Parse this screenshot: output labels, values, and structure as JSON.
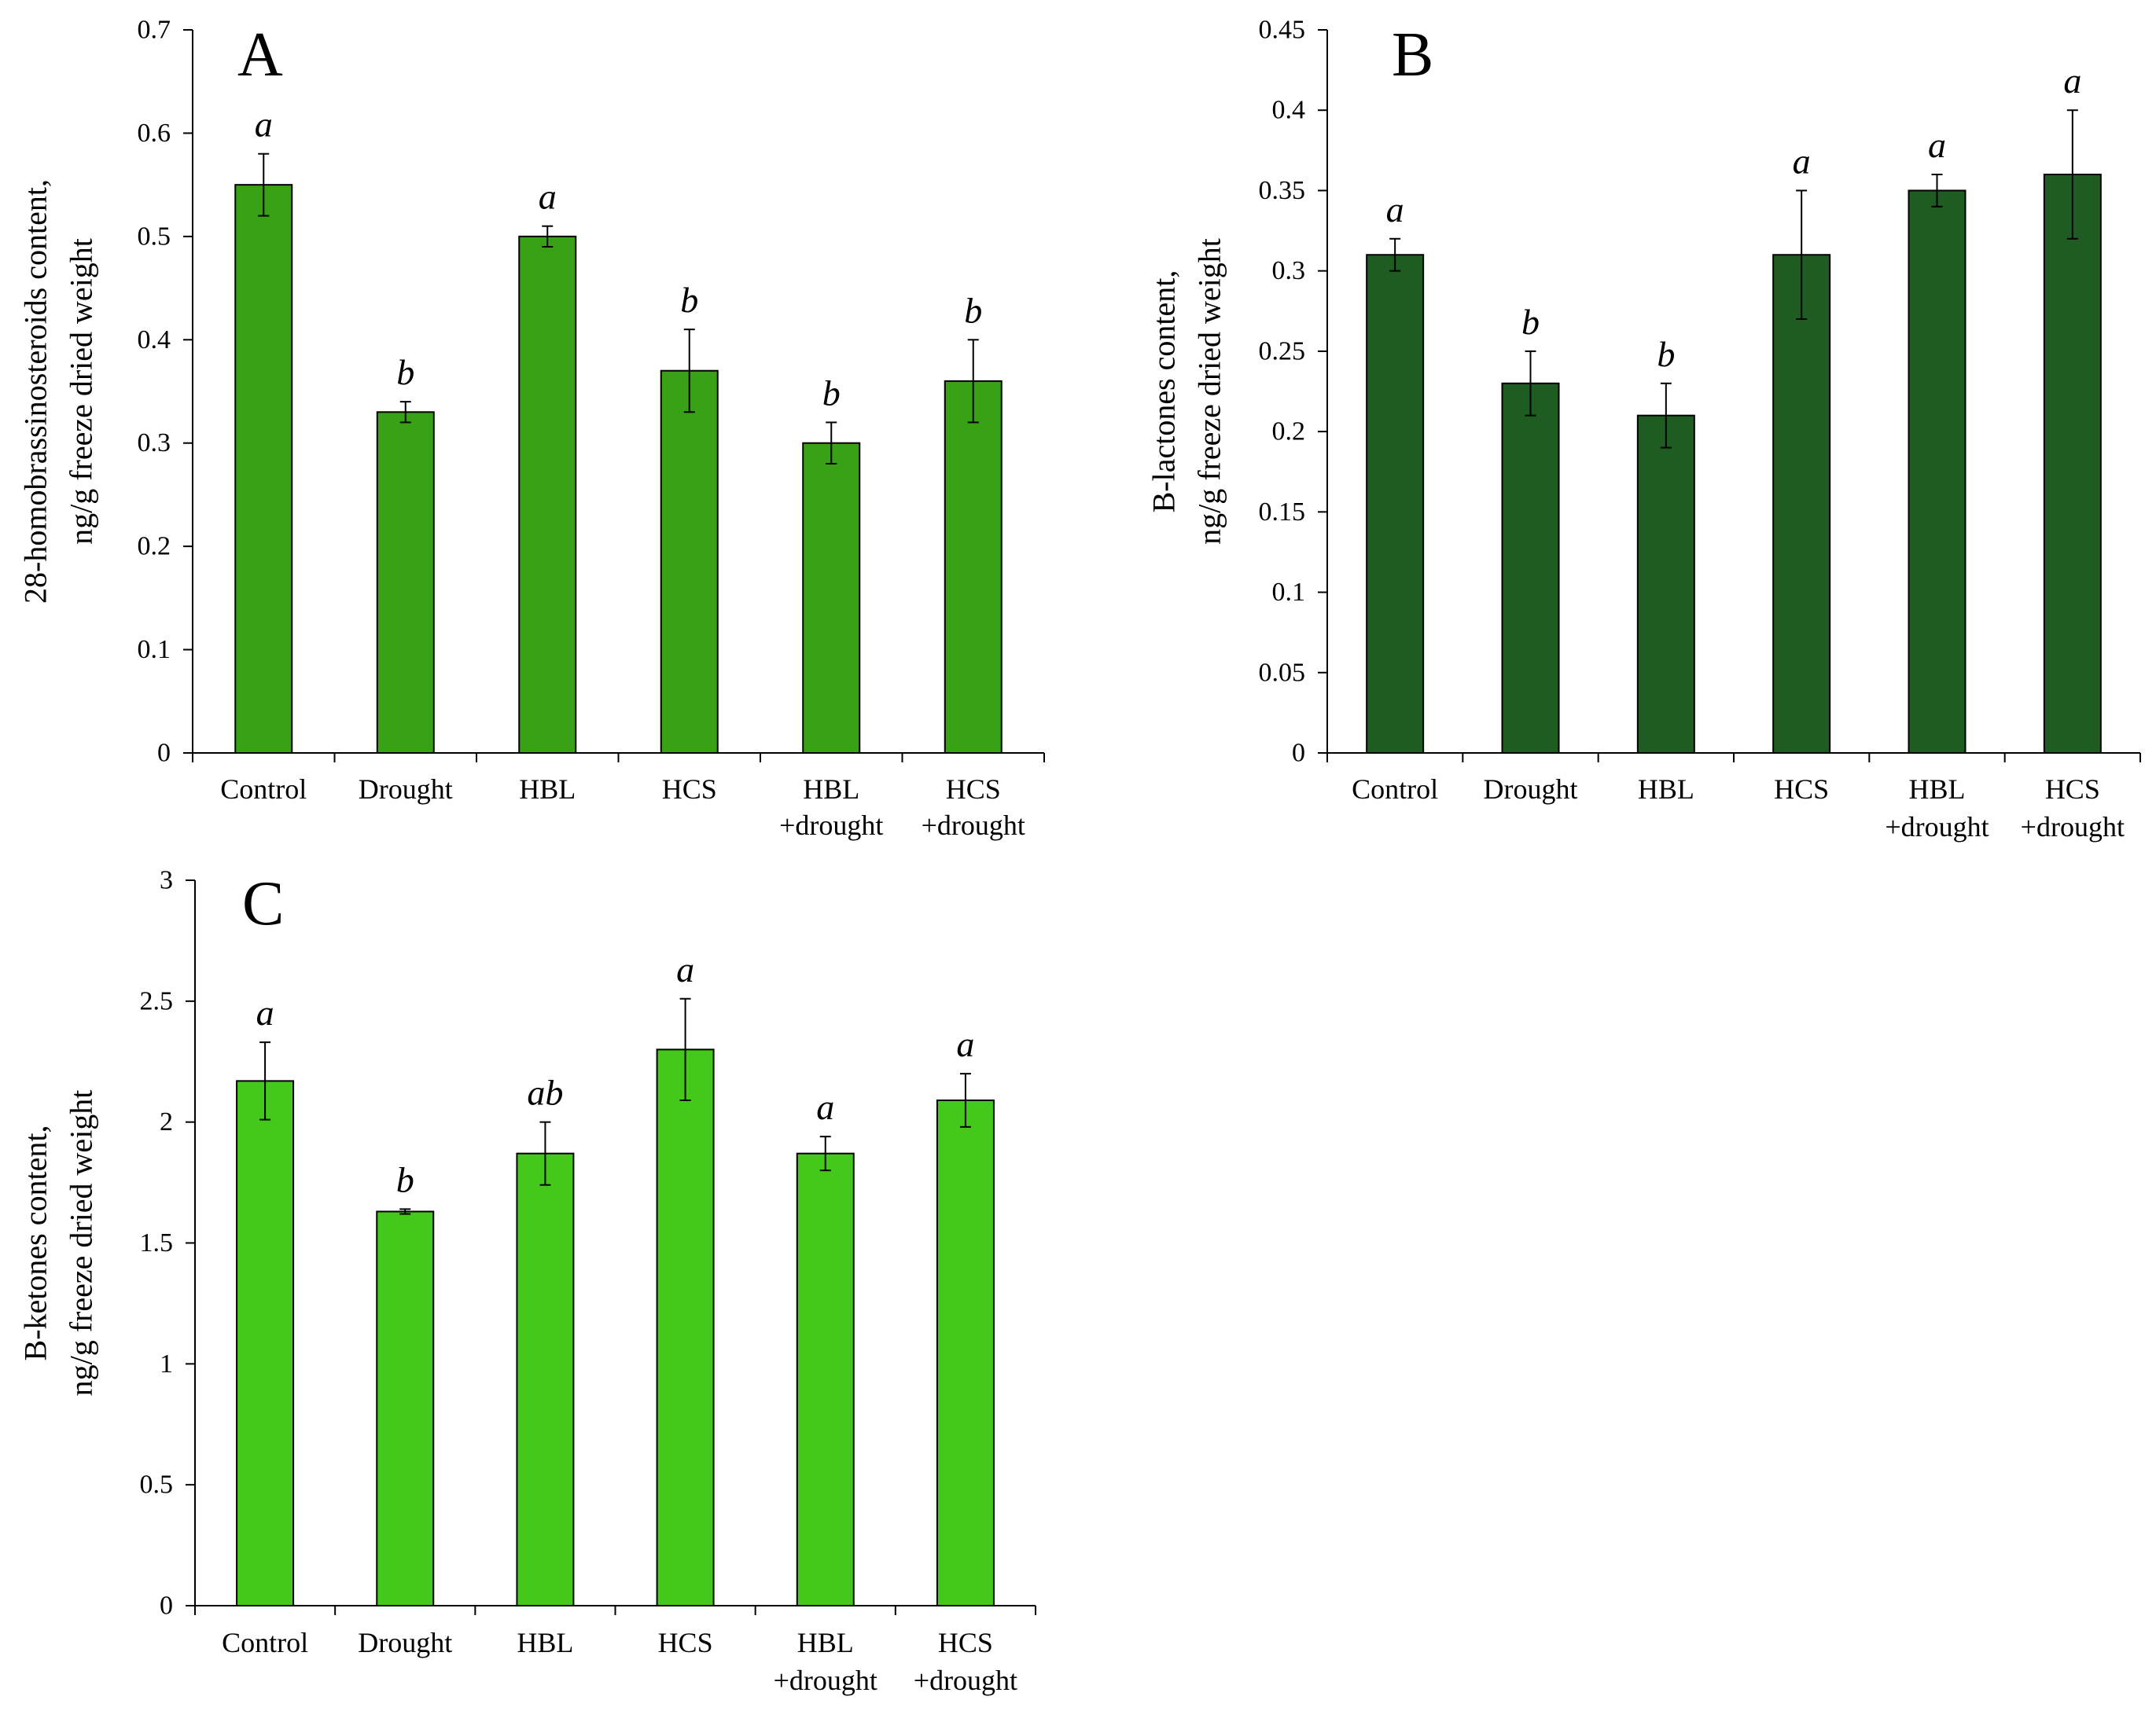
{
  "figure": {
    "panels": [
      "A",
      "B",
      "C"
    ]
  },
  "chart_data": [
    {
      "panel": "A",
      "type": "bar",
      "title": "",
      "ylabel_lines": [
        "28-homobrassinosteroids content,",
        "ng/g freeze dried weight"
      ],
      "xlabel": "",
      "categories": [
        [
          "Control"
        ],
        [
          "Drought"
        ],
        [
          "HBL"
        ],
        [
          "HCS"
        ],
        [
          "HBL",
          "+drought"
        ],
        [
          "HCS",
          "+drought"
        ]
      ],
      "values": [
        0.55,
        0.33,
        0.5,
        0.37,
        0.3,
        0.36
      ],
      "errors": [
        0.03,
        0.01,
        0.01,
        0.04,
        0.02,
        0.04
      ],
      "significance": [
        "a",
        "b",
        "a",
        "b",
        "b",
        "b"
      ],
      "ylim": [
        0,
        0.7
      ],
      "yticks": [
        0,
        0.1,
        0.2,
        0.3,
        0.4,
        0.5,
        0.6,
        0.7
      ],
      "ytick_labels": [
        "0",
        "0.1",
        "0.2",
        "0.3",
        "0.4",
        "0.5",
        "0.6",
        "0.7"
      ],
      "bar_color": "#38a116",
      "grid": false
    },
    {
      "panel": "B",
      "type": "bar",
      "title": "",
      "ylabel_lines": [
        "B-lactones content,",
        "ng/g freeze dried weight"
      ],
      "xlabel": "",
      "categories": [
        [
          "Control"
        ],
        [
          "Drought"
        ],
        [
          "HBL"
        ],
        [
          "HCS"
        ],
        [
          "HBL",
          "+drought"
        ],
        [
          "HCS",
          "+drought"
        ]
      ],
      "values": [
        0.31,
        0.23,
        0.21,
        0.31,
        0.35,
        0.36
      ],
      "errors": [
        0.01,
        0.02,
        0.02,
        0.04,
        0.01,
        0.04
      ],
      "significance": [
        "a",
        "b",
        "b",
        "a",
        "a",
        "a"
      ],
      "ylim": [
        0,
        0.45
      ],
      "yticks": [
        0,
        0.05,
        0.1,
        0.15,
        0.2,
        0.25,
        0.3,
        0.35,
        0.4,
        0.45
      ],
      "ytick_labels": [
        "0",
        "0.05",
        "0.1",
        "0.15",
        "0.2",
        "0.25",
        "0.3",
        "0.35",
        "0.4",
        "0.45"
      ],
      "bar_color": "#1f5c21",
      "grid": false
    },
    {
      "panel": "C",
      "type": "bar",
      "title": "",
      "ylabel_lines": [
        "B-ketones content,",
        "ng/g freeze dried weight"
      ],
      "xlabel": "",
      "categories": [
        [
          "Control"
        ],
        [
          "Drought"
        ],
        [
          "HBL"
        ],
        [
          "HCS"
        ],
        [
          "HBL",
          "+drought"
        ],
        [
          "HCS",
          "+drought"
        ]
      ],
      "values": [
        2.17,
        1.63,
        1.87,
        2.3,
        1.87,
        2.09
      ],
      "errors": [
        0.16,
        0.01,
        0.13,
        0.21,
        0.07,
        0.11
      ],
      "significance": [
        "a",
        "b",
        "ab",
        "a",
        "a",
        "a"
      ],
      "ylim": [
        0,
        3
      ],
      "yticks": [
        0,
        0.5,
        1,
        1.5,
        2,
        2.5,
        3
      ],
      "ytick_labels": [
        "0",
        "0.5",
        "1",
        "1.5",
        "2",
        "2.5",
        "3"
      ],
      "bar_color": "#44c81b",
      "grid": false
    }
  ]
}
